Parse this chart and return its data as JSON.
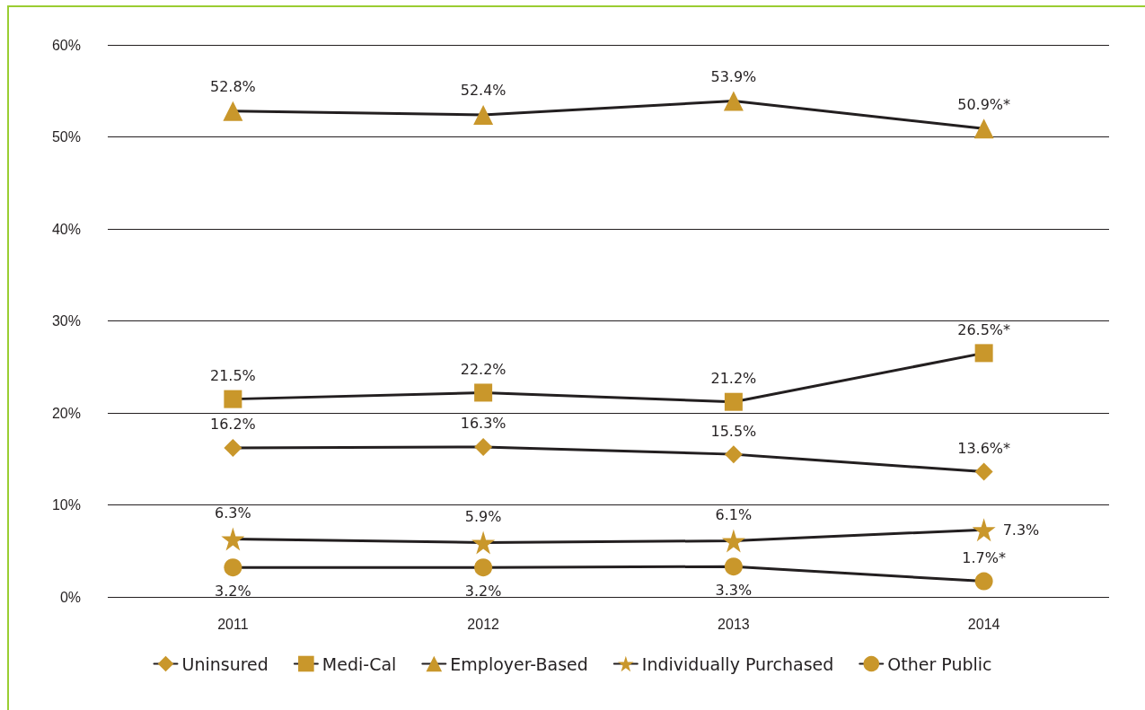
{
  "chart_data": {
    "type": "line",
    "categories": [
      "2011",
      "2012",
      "2013",
      "2014"
    ],
    "series": [
      {
        "name": "Uninsured",
        "color": "#c9972b",
        "marker": "diamond",
        "values": [
          16.2,
          16.3,
          15.5,
          13.6
        ],
        "value_labels": [
          "16.2%",
          "16.3%",
          "15.5%",
          "13.6%*"
        ]
      },
      {
        "name": "Medi-Cal",
        "color": "#c9972b",
        "marker": "square",
        "values": [
          21.5,
          22.2,
          21.2,
          26.5
        ],
        "value_labels": [
          "21.5%",
          "22.2%",
          "21.2%",
          "26.5%*"
        ]
      },
      {
        "name": "Employer-Based",
        "color": "#c9972b",
        "marker": "triangle",
        "values": [
          52.8,
          52.4,
          53.9,
          50.9
        ],
        "value_labels": [
          "52.8%",
          "52.4%",
          "53.9%",
          "50.9%*"
        ]
      },
      {
        "name": "Individually Purchased",
        "color": "#c9972b",
        "marker": "star",
        "values": [
          6.3,
          5.9,
          6.1,
          7.3
        ],
        "value_labels": [
          "6.3%",
          "5.9%",
          "6.1%",
          "7.3%"
        ]
      },
      {
        "name": "Other Public",
        "color": "#c9972b",
        "marker": "circle",
        "values": [
          3.2,
          3.2,
          3.3,
          1.7
        ],
        "value_labels": [
          "3.2%",
          "3.2%",
          "3.3%",
          "1.7%*"
        ]
      }
    ],
    "ylim": [
      0,
      60
    ],
    "yticks": [
      {
        "value": 0,
        "label": "0%"
      },
      {
        "value": 10,
        "label": "10%"
      },
      {
        "value": 20,
        "label": "20%"
      },
      {
        "value": 30,
        "label": "30%"
      },
      {
        "value": 40,
        "label": "40%"
      },
      {
        "value": 50,
        "label": "50%"
      },
      {
        "value": 60,
        "label": "60%"
      }
    ],
    "grid": "y",
    "legend": "bottom",
    "line_style": "solid"
  }
}
